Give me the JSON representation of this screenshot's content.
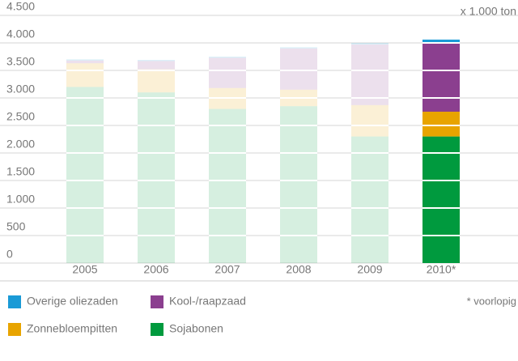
{
  "chart_data": {
    "type": "stacked_bar",
    "unit_label": "x 1.000 ton",
    "note": "* voorlopig",
    "categories": [
      "2005",
      "2006",
      "2007",
      "2008",
      "2009",
      "2010*"
    ],
    "series": [
      {
        "name": "Overige oliezaden",
        "color": "#1a9ad6",
        "values": [
          20,
          20,
          20,
          20,
          30,
          60
        ]
      },
      {
        "name": "Kool-/raapzaad",
        "color": "#8b3f8f",
        "values": [
          50,
          150,
          550,
          750,
          1100,
          1250
        ]
      },
      {
        "name": "Zonnebloempitten",
        "color": "#e8a400",
        "values": [
          430,
          420,
          380,
          300,
          570,
          450
        ]
      },
      {
        "name": "Sojabonen",
        "color": "#009a3e",
        "values": [
          3200,
          3100,
          2800,
          2850,
          2300,
          2300
        ]
      }
    ],
    "ylim": [
      0,
      4500
    ],
    "yticks": [
      0,
      {
        "value": 500,
        "label": "500"
      },
      {
        "value": 1000,
        "label": "1.000"
      },
      {
        "value": 1500,
        "label": "1.500"
      },
      {
        "value": 2000,
        "label": "2.000"
      },
      {
        "value": 2500,
        "label": "2.500"
      },
      {
        "value": 3000,
        "label": "3.000"
      },
      {
        "value": 3500,
        "label": "3.500"
      },
      {
        "value": 4000,
        "label": "4.000"
      },
      {
        "value": 4500,
        "label": "4.500"
      }
    ],
    "grid": true
  }
}
